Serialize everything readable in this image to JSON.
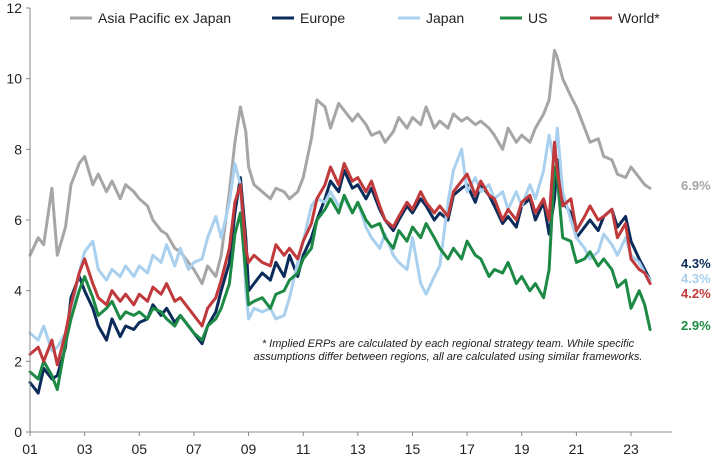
{
  "chart_data": {
    "type": "line",
    "title": "",
    "xlabel": "",
    "ylabel": "",
    "ylim": [
      0,
      12
    ],
    "yticks": [
      0,
      2,
      4,
      6,
      8,
      10,
      12
    ],
    "xticks": [
      {
        "value": 2001,
        "label": "01"
      },
      {
        "value": 2003,
        "label": "03"
      },
      {
        "value": 2005,
        "label": "05"
      },
      {
        "value": 2007,
        "label": "07"
      },
      {
        "value": 2009,
        "label": "09"
      },
      {
        "value": 2011,
        "label": "11"
      },
      {
        "value": 2013,
        "label": "13"
      },
      {
        "value": 2015,
        "label": "15"
      },
      {
        "value": 2017,
        "label": "17"
      },
      {
        "value": 2019,
        "label": "19"
      },
      {
        "value": 2021,
        "label": "21"
      },
      {
        "value": 2023,
        "label": "23"
      }
    ],
    "xlim": [
      2001,
      2024.5
    ],
    "grid": false,
    "legend_position": "top",
    "note": "* Implied ERPs are calculated by each regional strategy team. While specific assumptions differ between regions, all are calculated using similar frameworks.",
    "series": [
      {
        "name": "Asia Pacific ex Japan",
        "color": "#a6a6a6",
        "end_label": "6.9%",
        "x": [
          2001.0,
          2001.3,
          2001.5,
          2001.8,
          2002.0,
          2002.3,
          2002.5,
          2002.8,
          2003.0,
          2003.3,
          2003.5,
          2003.8,
          2004.0,
          2004.3,
          2004.5,
          2004.8,
          2005.0,
          2005.3,
          2005.5,
          2005.8,
          2006.0,
          2006.3,
          2006.5,
          2006.8,
          2007.0,
          2007.3,
          2007.5,
          2007.8,
          2008.0,
          2008.3,
          2008.5,
          2008.7,
          2008.9,
          2009.0,
          2009.2,
          2009.5,
          2009.8,
          2010.0,
          2010.3,
          2010.5,
          2010.8,
          2011.0,
          2011.3,
          2011.5,
          2011.8,
          2012.0,
          2012.3,
          2012.5,
          2012.8,
          2013.0,
          2013.3,
          2013.5,
          2013.8,
          2014.0,
          2014.3,
          2014.5,
          2014.8,
          2015.0,
          2015.3,
          2015.5,
          2015.8,
          2016.0,
          2016.3,
          2016.5,
          2016.8,
          2017.0,
          2017.3,
          2017.5,
          2017.8,
          2018.0,
          2018.3,
          2018.5,
          2018.8,
          2019.0,
          2019.3,
          2019.5,
          2019.8,
          2020.0,
          2020.2,
          2020.3,
          2020.5,
          2020.8,
          2021.0,
          2021.3,
          2021.5,
          2021.8,
          2022.0,
          2022.3,
          2022.5,
          2022.8,
          2023.0,
          2023.3,
          2023.5,
          2023.7
        ],
        "values": [
          5.0,
          5.5,
          5.3,
          6.9,
          5.0,
          5.8,
          7.0,
          7.6,
          7.8,
          7.0,
          7.3,
          6.8,
          7.1,
          6.6,
          7.0,
          6.8,
          6.6,
          6.4,
          6.0,
          5.7,
          5.6,
          5.2,
          5.1,
          4.8,
          4.6,
          4.2,
          4.7,
          4.4,
          5.0,
          6.8,
          8.2,
          9.2,
          8.5,
          7.5,
          7.0,
          6.8,
          6.6,
          6.9,
          6.8,
          6.6,
          6.8,
          7.2,
          8.3,
          9.4,
          9.2,
          8.6,
          9.3,
          9.1,
          8.8,
          9.0,
          8.7,
          8.4,
          8.5,
          8.2,
          8.5,
          8.9,
          8.6,
          8.9,
          8.7,
          9.2,
          8.6,
          8.8,
          8.6,
          9.0,
          8.8,
          8.9,
          8.7,
          8.8,
          8.6,
          8.4,
          8.0,
          8.6,
          8.2,
          8.4,
          8.2,
          8.6,
          9.0,
          9.4,
          10.8,
          10.6,
          10.0,
          9.5,
          9.2,
          8.6,
          8.2,
          8.3,
          7.8,
          7.7,
          7.3,
          7.2,
          7.5,
          7.2,
          7.0,
          6.9
        ]
      },
      {
        "name": "Europe",
        "color": "#0b2c5a",
        "end_label": "4.3%",
        "x": [
          2001.0,
          2001.3,
          2001.5,
          2001.8,
          2002.0,
          2002.3,
          2002.5,
          2002.8,
          2003.0,
          2003.3,
          2003.5,
          2003.8,
          2004.0,
          2004.3,
          2004.5,
          2004.8,
          2005.0,
          2005.3,
          2005.5,
          2005.8,
          2006.0,
          2006.3,
          2006.5,
          2006.8,
          2007.0,
          2007.3,
          2007.5,
          2007.8,
          2008.0,
          2008.3,
          2008.5,
          2008.7,
          2008.9,
          2009.0,
          2009.2,
          2009.5,
          2009.8,
          2010.0,
          2010.3,
          2010.5,
          2010.8,
          2011.0,
          2011.3,
          2011.5,
          2011.8,
          2012.0,
          2012.3,
          2012.5,
          2012.8,
          2013.0,
          2013.3,
          2013.5,
          2013.8,
          2014.0,
          2014.3,
          2014.5,
          2014.8,
          2015.0,
          2015.3,
          2015.5,
          2015.8,
          2016.0,
          2016.3,
          2016.5,
          2016.8,
          2017.0,
          2017.3,
          2017.5,
          2017.8,
          2018.0,
          2018.3,
          2018.5,
          2018.8,
          2019.0,
          2019.3,
          2019.5,
          2019.8,
          2020.0,
          2020.2,
          2020.3,
          2020.5,
          2020.8,
          2021.0,
          2021.3,
          2021.5,
          2021.8,
          2022.0,
          2022.3,
          2022.5,
          2022.8,
          2023.0,
          2023.3,
          2023.5,
          2023.7
        ],
        "values": [
          1.4,
          1.1,
          1.8,
          1.5,
          1.6,
          2.4,
          3.8,
          4.4,
          4.0,
          3.5,
          3.0,
          2.6,
          3.2,
          2.7,
          3.0,
          2.9,
          3.1,
          3.2,
          3.6,
          3.3,
          3.5,
          3.1,
          3.3,
          3.0,
          2.8,
          2.5,
          3.0,
          3.4,
          4.0,
          4.8,
          6.2,
          7.2,
          5.5,
          4.0,
          4.2,
          4.5,
          4.3,
          4.8,
          4.4,
          5.0,
          4.4,
          5.0,
          5.5,
          6.0,
          6.6,
          7.1,
          6.8,
          7.4,
          6.9,
          7.0,
          6.6,
          6.9,
          6.3,
          6.0,
          5.7,
          6.0,
          6.4,
          6.2,
          6.6,
          6.4,
          6.0,
          6.2,
          6.0,
          6.7,
          6.9,
          7.0,
          6.5,
          7.0,
          6.7,
          6.4,
          5.9,
          6.1,
          5.8,
          6.4,
          6.6,
          6.0,
          6.5,
          5.6,
          6.6,
          7.7,
          6.5,
          6.2,
          5.5,
          5.8,
          6.0,
          5.7,
          6.1,
          6.3,
          5.8,
          6.1,
          5.4,
          4.9,
          4.6,
          4.3
        ]
      },
      {
        "name": "Japan",
        "color": "#a9d0ee",
        "end_label": "4.3%",
        "x": [
          2001.0,
          2001.3,
          2001.5,
          2001.8,
          2002.0,
          2002.3,
          2002.5,
          2002.8,
          2003.0,
          2003.3,
          2003.5,
          2003.8,
          2004.0,
          2004.3,
          2004.5,
          2004.8,
          2005.0,
          2005.3,
          2005.5,
          2005.8,
          2006.0,
          2006.3,
          2006.5,
          2006.8,
          2007.0,
          2007.3,
          2007.5,
          2007.8,
          2008.0,
          2008.3,
          2008.5,
          2008.7,
          2008.9,
          2009.0,
          2009.2,
          2009.5,
          2009.8,
          2010.0,
          2010.3,
          2010.5,
          2010.8,
          2011.0,
          2011.3,
          2011.5,
          2011.8,
          2012.0,
          2012.3,
          2012.5,
          2012.8,
          2013.0,
          2013.3,
          2013.5,
          2013.8,
          2014.0,
          2014.3,
          2014.5,
          2014.8,
          2015.0,
          2015.3,
          2015.5,
          2015.8,
          2016.0,
          2016.3,
          2016.5,
          2016.8,
          2017.0,
          2017.3,
          2017.5,
          2017.8,
          2018.0,
          2018.3,
          2018.5,
          2018.8,
          2019.0,
          2019.3,
          2019.5,
          2019.8,
          2020.0,
          2020.2,
          2020.3,
          2020.5,
          2020.8,
          2021.0,
          2021.3,
          2021.5,
          2021.8,
          2022.0,
          2022.3,
          2022.5,
          2022.8,
          2023.0,
          2023.3,
          2023.5,
          2023.7
        ],
        "values": [
          2.8,
          2.6,
          3.0,
          2.3,
          2.4,
          2.8,
          3.4,
          4.5,
          5.1,
          5.4,
          4.6,
          4.3,
          4.6,
          4.4,
          4.7,
          4.4,
          4.7,
          4.5,
          5.0,
          4.8,
          5.3,
          4.7,
          5.2,
          4.6,
          4.8,
          4.9,
          5.5,
          6.1,
          5.5,
          6.5,
          7.6,
          7.0,
          4.0,
          3.2,
          3.5,
          3.4,
          3.5,
          3.2,
          3.3,
          3.8,
          4.8,
          5.4,
          6.4,
          6.6,
          6.5,
          6.8,
          6.4,
          6.6,
          6.2,
          6.5,
          5.8,
          5.5,
          5.2,
          5.6,
          5.0,
          4.8,
          4.6,
          5.5,
          4.2,
          3.9,
          4.4,
          4.7,
          6.5,
          7.4,
          8.0,
          6.8,
          7.2,
          6.8,
          7.0,
          6.6,
          6.8,
          6.3,
          6.8,
          6.4,
          7.0,
          6.6,
          7.4,
          8.4,
          7.6,
          8.6,
          6.8,
          6.0,
          5.5,
          5.2,
          4.9,
          5.1,
          5.6,
          5.3,
          5.0,
          5.5,
          5.0,
          4.8,
          4.5,
          4.3
        ]
      },
      {
        "name": "US",
        "color": "#1c8a44",
        "end_label": "2.9%",
        "x": [
          2001.0,
          2001.3,
          2001.5,
          2001.8,
          2002.0,
          2002.3,
          2002.5,
          2002.8,
          2003.0,
          2003.3,
          2003.5,
          2003.8,
          2004.0,
          2004.3,
          2004.5,
          2004.8,
          2005.0,
          2005.3,
          2005.5,
          2005.8,
          2006.0,
          2006.3,
          2006.5,
          2006.8,
          2007.0,
          2007.3,
          2007.5,
          2007.8,
          2008.0,
          2008.3,
          2008.5,
          2008.7,
          2008.9,
          2009.0,
          2009.2,
          2009.5,
          2009.8,
          2010.0,
          2010.3,
          2010.5,
          2010.8,
          2011.0,
          2011.3,
          2011.5,
          2011.8,
          2012.0,
          2012.3,
          2012.5,
          2012.8,
          2013.0,
          2013.3,
          2013.5,
          2013.8,
          2014.0,
          2014.3,
          2014.5,
          2014.8,
          2015.0,
          2015.3,
          2015.5,
          2015.8,
          2016.0,
          2016.3,
          2016.5,
          2016.8,
          2017.0,
          2017.3,
          2017.5,
          2017.8,
          2018.0,
          2018.3,
          2018.5,
          2018.8,
          2019.0,
          2019.3,
          2019.5,
          2019.8,
          2020.0,
          2020.2,
          2020.3,
          2020.5,
          2020.8,
          2021.0,
          2021.3,
          2021.5,
          2021.8,
          2022.0,
          2022.3,
          2022.5,
          2022.8,
          2023.0,
          2023.3,
          2023.5,
          2023.7
        ],
        "values": [
          1.7,
          1.5,
          2.0,
          1.6,
          1.2,
          2.5,
          3.2,
          4.0,
          4.4,
          3.8,
          3.3,
          3.5,
          3.7,
          3.2,
          3.4,
          3.3,
          3.4,
          3.2,
          3.5,
          3.4,
          3.2,
          3.0,
          3.3,
          3.0,
          2.8,
          2.6,
          3.0,
          3.2,
          3.5,
          4.2,
          5.6,
          6.2,
          4.5,
          3.6,
          3.7,
          3.8,
          3.5,
          3.9,
          4.0,
          4.3,
          4.5,
          4.9,
          5.2,
          6.0,
          6.3,
          6.6,
          6.2,
          6.7,
          6.2,
          6.5,
          6.0,
          5.8,
          5.9,
          5.5,
          5.2,
          5.7,
          5.4,
          5.8,
          5.5,
          5.9,
          5.5,
          5.2,
          4.9,
          5.2,
          4.9,
          5.4,
          5.0,
          4.9,
          4.4,
          4.6,
          4.5,
          4.8,
          4.2,
          4.4,
          4.0,
          4.2,
          3.8,
          4.6,
          7.5,
          7.2,
          5.5,
          5.4,
          4.8,
          4.9,
          5.1,
          4.7,
          4.9,
          4.6,
          4.1,
          4.3,
          3.5,
          4.0,
          3.6,
          2.9
        ]
      },
      {
        "name": "World*",
        "color": "#c0393b",
        "end_label": "4.2%",
        "x": [
          2001.0,
          2001.3,
          2001.5,
          2001.8,
          2002.0,
          2002.3,
          2002.5,
          2002.8,
          2003.0,
          2003.3,
          2003.5,
          2003.8,
          2004.0,
          2004.3,
          2004.5,
          2004.8,
          2005.0,
          2005.3,
          2005.5,
          2005.8,
          2006.0,
          2006.3,
          2006.5,
          2006.8,
          2007.0,
          2007.3,
          2007.5,
          2007.8,
          2008.0,
          2008.3,
          2008.5,
          2008.7,
          2008.9,
          2009.0,
          2009.2,
          2009.5,
          2009.8,
          2010.0,
          2010.3,
          2010.5,
          2010.8,
          2011.0,
          2011.3,
          2011.5,
          2011.8,
          2012.0,
          2012.3,
          2012.5,
          2012.8,
          2013.0,
          2013.3,
          2013.5,
          2013.8,
          2014.0,
          2014.3,
          2014.5,
          2014.8,
          2015.0,
          2015.3,
          2015.5,
          2015.8,
          2016.0,
          2016.3,
          2016.5,
          2016.8,
          2017.0,
          2017.3,
          2017.5,
          2017.8,
          2018.0,
          2018.3,
          2018.5,
          2018.8,
          2019.0,
          2019.3,
          2019.5,
          2019.8,
          2020.0,
          2020.2,
          2020.3,
          2020.5,
          2020.8,
          2021.0,
          2021.3,
          2021.5,
          2021.8,
          2022.0,
          2022.3,
          2022.5,
          2022.8,
          2023.0,
          2023.3,
          2023.5,
          2023.7
        ],
        "values": [
          2.2,
          2.4,
          2.0,
          2.6,
          1.9,
          2.8,
          3.6,
          4.5,
          4.9,
          4.2,
          3.8,
          3.6,
          4.0,
          3.7,
          3.9,
          3.6,
          3.9,
          3.7,
          4.1,
          3.9,
          4.2,
          3.7,
          3.8,
          3.5,
          3.3,
          3.0,
          3.5,
          3.8,
          4.3,
          5.2,
          6.5,
          7.0,
          5.2,
          4.8,
          5.0,
          4.8,
          4.7,
          5.3,
          5.0,
          5.2,
          4.9,
          5.4,
          5.9,
          6.6,
          7.0,
          7.5,
          7.0,
          7.6,
          7.1,
          7.2,
          6.8,
          7.1,
          6.4,
          6.0,
          5.8,
          6.1,
          6.5,
          6.3,
          6.8,
          6.5,
          6.2,
          6.4,
          6.1,
          6.8,
          7.1,
          7.3,
          6.7,
          7.1,
          6.7,
          6.6,
          6.0,
          6.3,
          6.0,
          6.5,
          6.7,
          6.2,
          6.6,
          6.0,
          8.2,
          7.4,
          6.4,
          6.6,
          5.7,
          6.1,
          6.4,
          6.0,
          6.1,
          6.3,
          5.5,
          5.9,
          4.9,
          4.6,
          4.5,
          4.2
        ]
      }
    ]
  }
}
